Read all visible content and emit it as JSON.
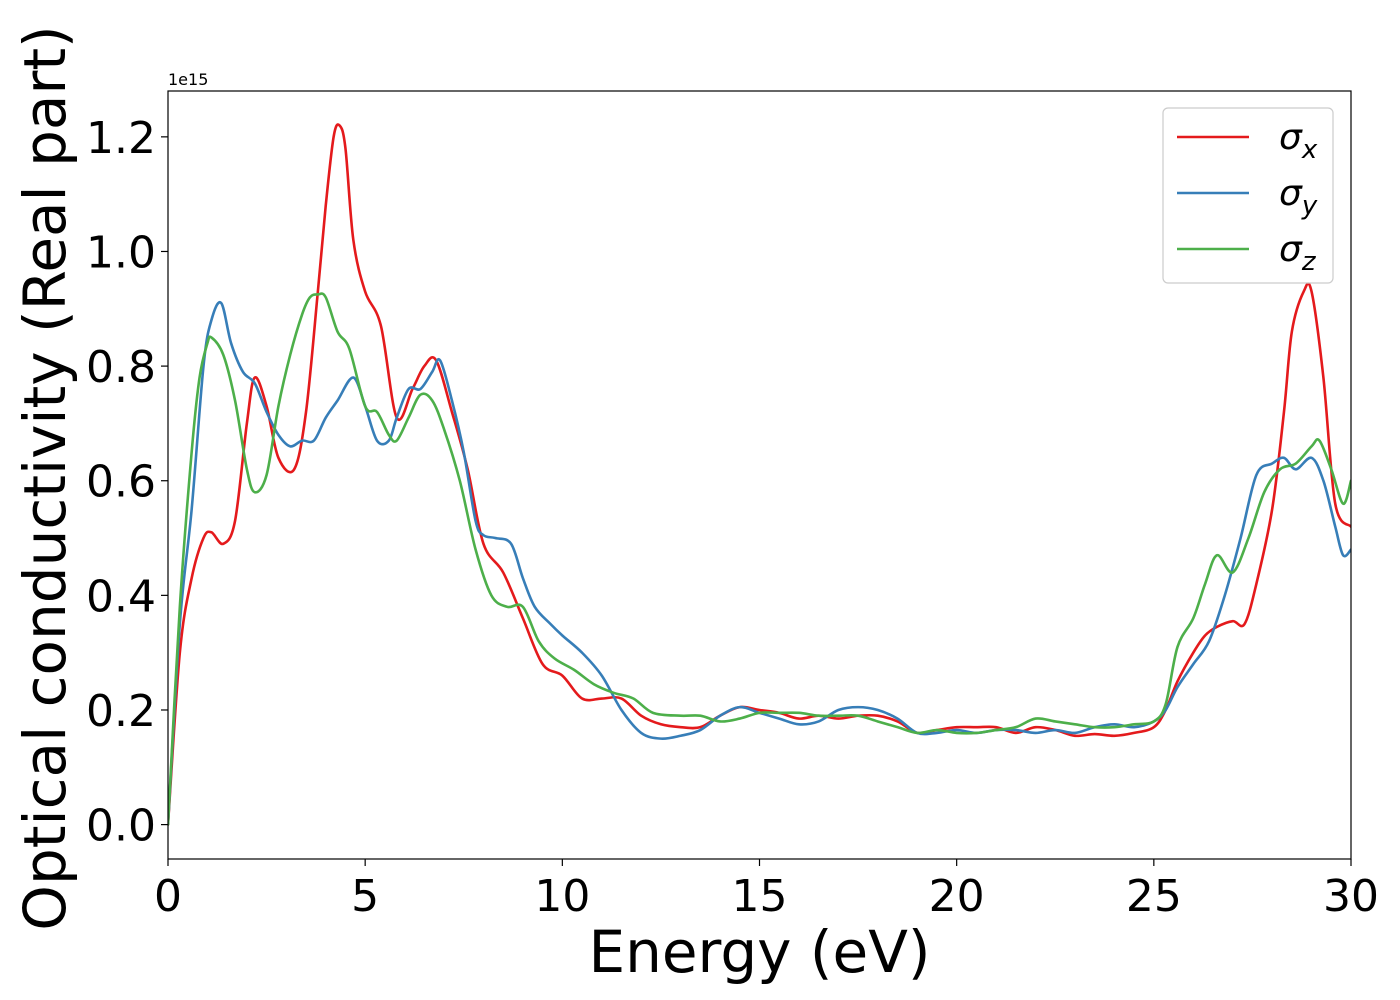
{
  "chart_data": {
    "type": "line",
    "title": "",
    "xlabel": "Energy (eV)",
    "ylabel": "Optical conductivity (Real part)",
    "y_offset_label": "1e15",
    "xlim": [
      0,
      30
    ],
    "ylim": [
      -0.06,
      1.28
    ],
    "xticks": [
      0,
      5,
      10,
      15,
      20,
      25,
      30
    ],
    "xtick_labels": [
      "0",
      "5",
      "10",
      "15",
      "20",
      "25",
      "30"
    ],
    "yticks": [
      0.0,
      0.2,
      0.4,
      0.6,
      0.8,
      1.0,
      1.2
    ],
    "ytick_labels": [
      "0.0",
      "0.2",
      "0.4",
      "0.6",
      "0.8",
      "1.0",
      "1.2"
    ],
    "grid": false,
    "legend_position": "top-right",
    "series": [
      {
        "name": "σx",
        "legend_base": "σ",
        "legend_sub": "x",
        "color": "#e41a1c",
        "x": [
          0,
          0.3,
          0.6,
          0.9,
          1.1,
          1.4,
          1.7,
          2.0,
          2.2,
          2.5,
          2.8,
          3.2,
          3.5,
          3.8,
          4.0,
          4.2,
          4.35,
          4.5,
          4.7,
          5.0,
          5.4,
          5.8,
          6.2,
          6.5,
          6.8,
          7.2,
          7.6,
          8.0,
          8.5,
          9.0,
          9.5,
          10.0,
          10.5,
          11.0,
          11.5,
          12.0,
          12.5,
          13.0,
          13.5,
          14.0,
          14.5,
          15.0,
          15.5,
          16.0,
          16.5,
          17.0,
          17.5,
          18.0,
          18.5,
          19.0,
          19.5,
          20.0,
          20.5,
          21.0,
          21.5,
          22.0,
          22.5,
          23.0,
          23.5,
          24.0,
          24.5,
          25.0,
          25.3,
          25.6,
          26.0,
          26.3,
          26.6,
          27.0,
          27.3,
          27.6,
          28.0,
          28.3,
          28.5,
          28.8,
          29.0,
          29.3,
          29.6,
          30.0
        ],
        "y": [
          0.0,
          0.3,
          0.43,
          0.5,
          0.51,
          0.49,
          0.53,
          0.7,
          0.78,
          0.73,
          0.64,
          0.62,
          0.72,
          0.93,
          1.08,
          1.2,
          1.22,
          1.18,
          1.02,
          0.93,
          0.87,
          0.71,
          0.76,
          0.8,
          0.81,
          0.72,
          0.62,
          0.49,
          0.44,
          0.36,
          0.28,
          0.26,
          0.22,
          0.22,
          0.22,
          0.19,
          0.175,
          0.17,
          0.17,
          0.19,
          0.205,
          0.2,
          0.195,
          0.185,
          0.19,
          0.185,
          0.19,
          0.19,
          0.18,
          0.16,
          0.165,
          0.17,
          0.17,
          0.17,
          0.16,
          0.17,
          0.165,
          0.155,
          0.158,
          0.155,
          0.16,
          0.17,
          0.2,
          0.25,
          0.3,
          0.33,
          0.345,
          0.355,
          0.35,
          0.42,
          0.55,
          0.72,
          0.86,
          0.93,
          0.93,
          0.78,
          0.56,
          0.52
        ]
      },
      {
        "name": "σy",
        "legend_base": "σ",
        "legend_sub": "y",
        "color": "#377eb8",
        "x": [
          0,
          0.3,
          0.6,
          0.9,
          1.1,
          1.35,
          1.6,
          1.9,
          2.2,
          2.5,
          2.8,
          3.1,
          3.4,
          3.7,
          4.0,
          4.3,
          4.7,
          5.0,
          5.3,
          5.6,
          5.8,
          6.1,
          6.4,
          6.7,
          6.9,
          7.2,
          7.5,
          7.8,
          8.0,
          8.3,
          8.7,
          9.0,
          9.3,
          9.7,
          10.0,
          10.5,
          11.0,
          11.5,
          12.0,
          12.5,
          13.0,
          13.5,
          14.0,
          14.5,
          15.0,
          15.5,
          16.0,
          16.5,
          17.0,
          17.5,
          18.0,
          18.5,
          19.0,
          19.5,
          20.0,
          20.5,
          21.0,
          21.5,
          22.0,
          22.5,
          23.0,
          23.5,
          24.0,
          24.5,
          25.0,
          25.3,
          25.6,
          26.0,
          26.4,
          26.8,
          27.2,
          27.6,
          28.0,
          28.3,
          28.6,
          29.0,
          29.3,
          29.6,
          29.8,
          30.0
        ],
        "y": [
          0.0,
          0.35,
          0.55,
          0.8,
          0.88,
          0.91,
          0.84,
          0.79,
          0.77,
          0.72,
          0.68,
          0.66,
          0.67,
          0.67,
          0.71,
          0.74,
          0.78,
          0.73,
          0.67,
          0.67,
          0.71,
          0.76,
          0.76,
          0.79,
          0.81,
          0.74,
          0.65,
          0.53,
          0.505,
          0.5,
          0.49,
          0.43,
          0.38,
          0.35,
          0.33,
          0.3,
          0.26,
          0.2,
          0.16,
          0.15,
          0.155,
          0.165,
          0.19,
          0.205,
          0.195,
          0.185,
          0.175,
          0.18,
          0.2,
          0.205,
          0.2,
          0.185,
          0.16,
          0.16,
          0.165,
          0.16,
          0.165,
          0.165,
          0.16,
          0.165,
          0.16,
          0.17,
          0.175,
          0.17,
          0.18,
          0.2,
          0.24,
          0.28,
          0.32,
          0.4,
          0.5,
          0.61,
          0.63,
          0.64,
          0.62,
          0.64,
          0.6,
          0.52,
          0.47,
          0.48
        ]
      },
      {
        "name": "σz",
        "legend_base": "σ",
        "legend_sub": "z",
        "color": "#4daf4a",
        "x": [
          0,
          0.3,
          0.6,
          0.8,
          1.0,
          1.1,
          1.4,
          1.7,
          2.0,
          2.2,
          2.5,
          2.8,
          3.1,
          3.4,
          3.6,
          3.8,
          4.0,
          4.3,
          4.6,
          5.0,
          5.3,
          5.6,
          5.8,
          6.1,
          6.4,
          6.7,
          7.0,
          7.4,
          7.8,
          8.2,
          8.6,
          9.0,
          9.4,
          9.8,
          10.3,
          10.8,
          11.3,
          11.8,
          12.3,
          13.0,
          13.5,
          14.0,
          14.5,
          15.0,
          15.5,
          16.0,
          16.5,
          17.0,
          17.5,
          18.0,
          18.5,
          19.0,
          19.5,
          20.0,
          20.5,
          21.0,
          21.5,
          22.0,
          22.5,
          23.0,
          23.5,
          24.0,
          24.5,
          25.0,
          25.3,
          25.6,
          26.0,
          26.3,
          26.6,
          27.0,
          27.4,
          27.8,
          28.2,
          28.6,
          29.0,
          29.2,
          29.5,
          29.8,
          30.0
        ],
        "y": [
          0.0,
          0.38,
          0.65,
          0.78,
          0.84,
          0.85,
          0.82,
          0.74,
          0.62,
          0.58,
          0.61,
          0.73,
          0.82,
          0.89,
          0.92,
          0.925,
          0.92,
          0.86,
          0.83,
          0.73,
          0.72,
          0.68,
          0.67,
          0.71,
          0.75,
          0.74,
          0.69,
          0.6,
          0.48,
          0.4,
          0.38,
          0.38,
          0.32,
          0.29,
          0.27,
          0.245,
          0.23,
          0.22,
          0.195,
          0.19,
          0.19,
          0.18,
          0.185,
          0.195,
          0.195,
          0.195,
          0.19,
          0.19,
          0.19,
          0.18,
          0.17,
          0.16,
          0.165,
          0.16,
          0.16,
          0.165,
          0.17,
          0.185,
          0.18,
          0.175,
          0.17,
          0.17,
          0.175,
          0.18,
          0.21,
          0.31,
          0.36,
          0.42,
          0.47,
          0.44,
          0.5,
          0.58,
          0.62,
          0.63,
          0.66,
          0.67,
          0.62,
          0.56,
          0.6
        ]
      }
    ]
  }
}
